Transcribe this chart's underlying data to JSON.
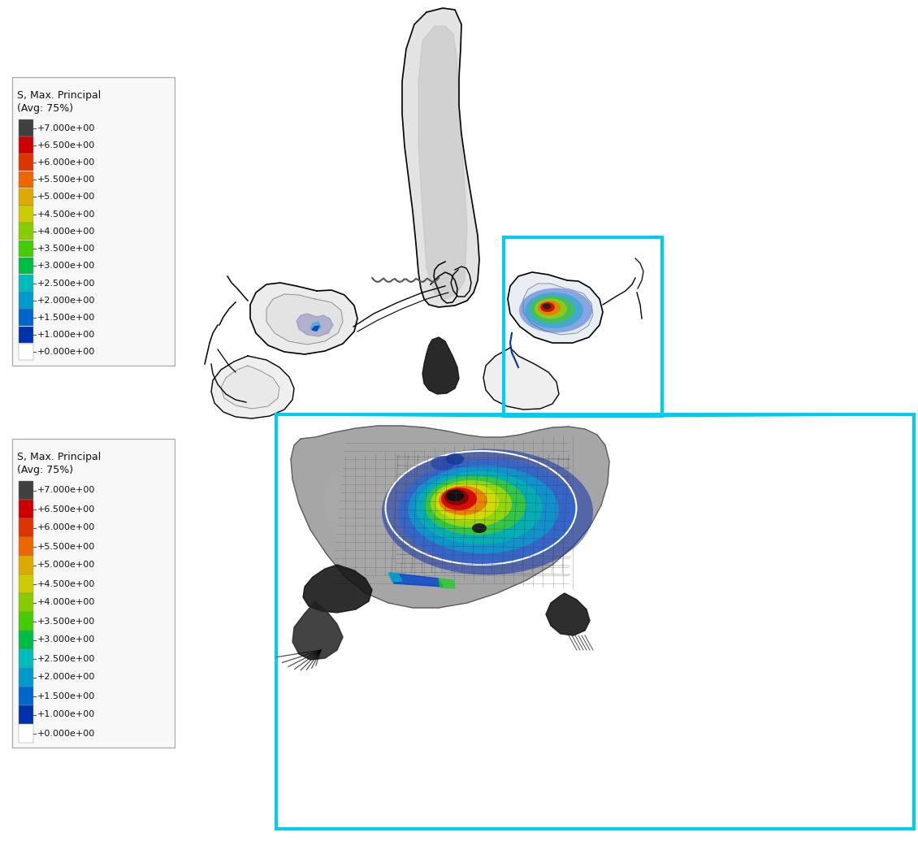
{
  "background_color": "#ffffff",
  "legend": {
    "title_line1": "S, Max. Principal",
    "title_line2": "(Avg: 75%)",
    "labels": [
      "+7.000e+00",
      "+6.500e+00",
      "+6.000e+00",
      "+5.500e+00",
      "+5.000e+00",
      "+4.500e+00",
      "+4.000e+00",
      "+3.500e+00",
      "+3.000e+00",
      "+2.500e+00",
      "+2.000e+00",
      "+1.500e+00",
      "+1.000e+00",
      "+0.000e+00"
    ],
    "colors": [
      "#404040",
      "#cc0000",
      "#dd3300",
      "#ee6600",
      "#ddaa00",
      "#cccc00",
      "#88cc00",
      "#44cc00",
      "#00bb44",
      "#00bbbb",
      "#0099cc",
      "#0066cc",
      "#0033aa",
      "#ffffff"
    ]
  },
  "cyan_color": "#00ccee",
  "cyan_linewidth": 3.0
}
